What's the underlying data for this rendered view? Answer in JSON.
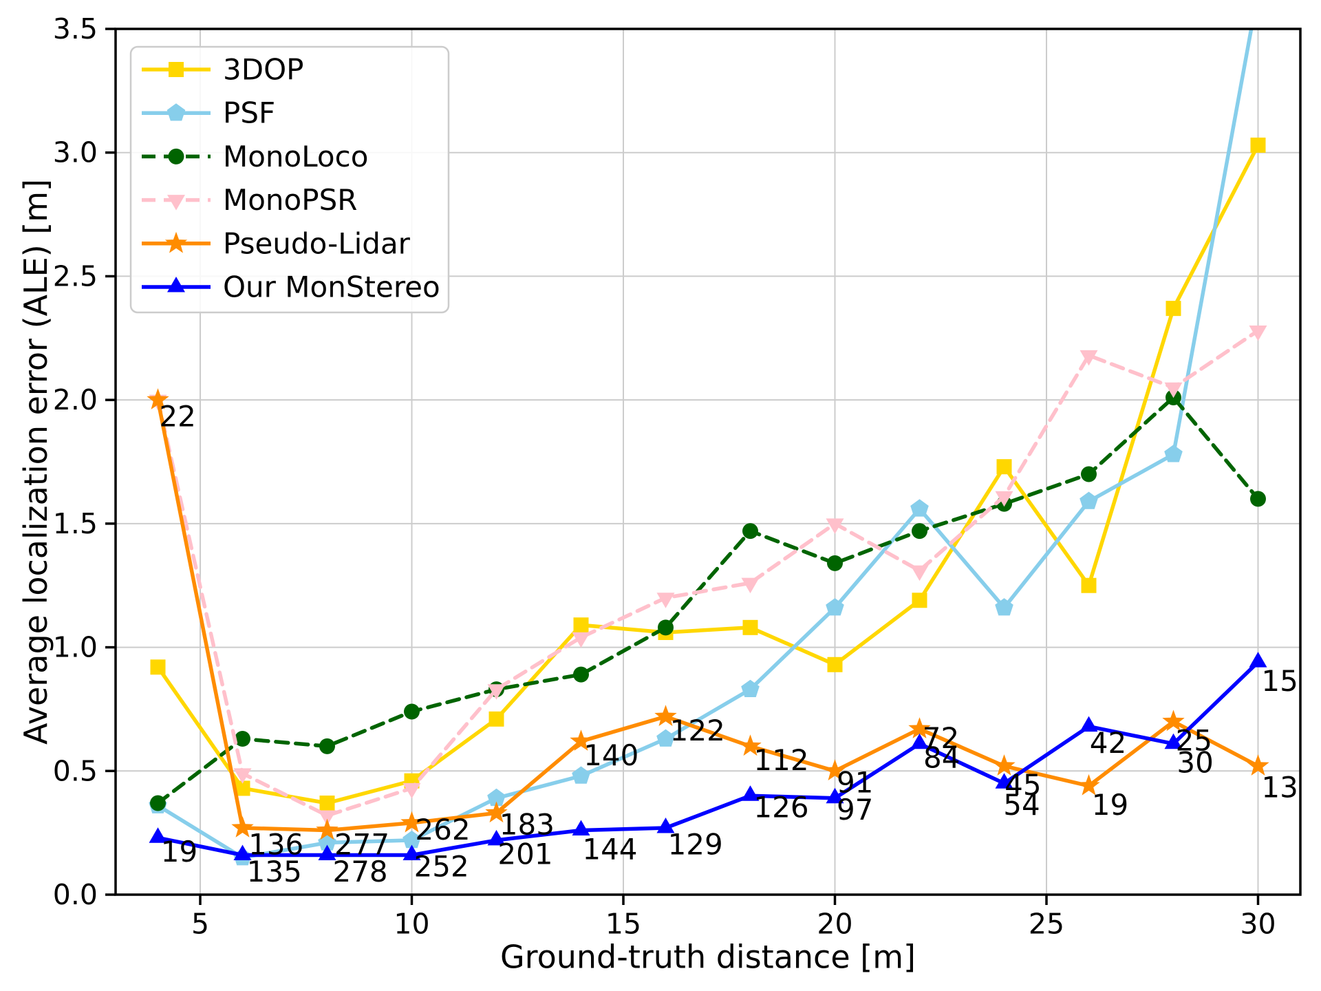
{
  "chart_data": {
    "type": "line",
    "title": "",
    "xlabel": "Ground-truth distance [m]",
    "ylabel": "Average localization error (ALE) [m]",
    "xlim": [
      3,
      31
    ],
    "ylim": [
      0,
      3.5
    ],
    "grid": true,
    "legend_position": "upper-left",
    "x_ticks": [
      "5",
      "10",
      "15",
      "20",
      "25",
      "30"
    ],
    "y_ticks": [
      "0.0",
      "0.5",
      "1.0",
      "1.5",
      "2.0",
      "2.5",
      "3.0",
      "3.5"
    ],
    "x": [
      4,
      6,
      8,
      10,
      12,
      14,
      16,
      18,
      20,
      22,
      24,
      26,
      28,
      30
    ],
    "series": [
      {
        "name": "3DOP",
        "color": "#FFD700",
        "marker": "square",
        "dash": "",
        "values": [
          0.92,
          0.43,
          0.37,
          0.46,
          0.71,
          1.09,
          1.06,
          1.08,
          0.93,
          1.19,
          1.73,
          1.25,
          2.37,
          3.03
        ]
      },
      {
        "name": "PSF",
        "color": "#87CEEB",
        "marker": "pentagon",
        "dash": "",
        "values": [
          0.36,
          0.15,
          0.21,
          0.22,
          0.39,
          0.48,
          0.63,
          0.83,
          1.16,
          1.56,
          1.16,
          1.59,
          1.78,
          3.65
        ]
      },
      {
        "name": "MonoLoco",
        "color": "#006400",
        "marker": "circle",
        "dash": "18 11",
        "values": [
          0.37,
          0.63,
          0.6,
          0.74,
          0.83,
          0.89,
          1.08,
          1.47,
          1.34,
          1.47,
          1.58,
          1.7,
          2.01,
          1.6
        ]
      },
      {
        "name": "MonoPSR",
        "color": "#FFC0CB",
        "marker": "triangle-down",
        "dash": "18 11",
        "values": [
          2.0,
          0.49,
          0.32,
          0.43,
          0.83,
          1.04,
          1.2,
          1.26,
          1.5,
          1.31,
          1.61,
          2.18,
          2.05,
          2.28
        ]
      },
      {
        "name": "Pseudo-Lidar",
        "color": "#FF8C00",
        "marker": "star",
        "dash": "",
        "values": [
          2.0,
          0.27,
          0.26,
          0.29,
          0.33,
          0.62,
          0.72,
          0.6,
          0.5,
          0.67,
          0.52,
          0.44,
          0.7,
          0.52
        ]
      },
      {
        "name": "Our MonStereo",
        "color": "#0000FF",
        "marker": "triangle-up",
        "dash": "",
        "values": [
          0.23,
          0.16,
          0.16,
          0.16,
          0.22,
          0.26,
          0.27,
          0.4,
          0.39,
          0.61,
          0.45,
          0.68,
          0.61,
          0.94
        ]
      }
    ],
    "annotations": [
      {
        "t": "22",
        "x": 4.03,
        "y": 1.98
      },
      {
        "t": "19",
        "x": 4.07,
        "y": 0.22
      },
      {
        "t": "136",
        "x": 6.14,
        "y": 0.25
      },
      {
        "t": "135",
        "x": 6.1,
        "y": 0.14
      },
      {
        "t": "277",
        "x": 8.17,
        "y": 0.25
      },
      {
        "t": "278",
        "x": 8.13,
        "y": 0.14
      },
      {
        "t": "262",
        "x": 10.08,
        "y": 0.31
      },
      {
        "t": "252",
        "x": 10.05,
        "y": 0.16
      },
      {
        "t": "183",
        "x": 12.07,
        "y": 0.33
      },
      {
        "t": "201",
        "x": 12.03,
        "y": 0.21
      },
      {
        "t": "140",
        "x": 14.06,
        "y": 0.61
      },
      {
        "t": "144",
        "x": 14.03,
        "y": 0.23
      },
      {
        "t": "122",
        "x": 16.1,
        "y": 0.71
      },
      {
        "t": "129",
        "x": 16.05,
        "y": 0.25
      },
      {
        "t": "112",
        "x": 18.08,
        "y": 0.59
      },
      {
        "t": "126",
        "x": 18.08,
        "y": 0.4
      },
      {
        "t": "91",
        "x": 20.04,
        "y": 0.5
      },
      {
        "t": "97",
        "x": 20.04,
        "y": 0.39
      },
      {
        "t": "72",
        "x": 22.07,
        "y": 0.68
      },
      {
        "t": "84",
        "x": 22.09,
        "y": 0.6
      },
      {
        "t": "45",
        "x": 24.01,
        "y": 0.49
      },
      {
        "t": "54",
        "x": 23.98,
        "y": 0.41
      },
      {
        "t": "42",
        "x": 26.02,
        "y": 0.66
      },
      {
        "t": "19",
        "x": 26.07,
        "y": 0.41
      },
      {
        "t": "25",
        "x": 28.05,
        "y": 0.67
      },
      {
        "t": "30",
        "x": 28.08,
        "y": 0.58
      },
      {
        "t": "15",
        "x": 30.08,
        "y": 0.91
      },
      {
        "t": "13",
        "x": 30.08,
        "y": 0.48
      }
    ],
    "style_colors": {
      "grid": "#CCCCCC",
      "spine": "#000000",
      "text": "#000000",
      "legend_border": "#CCCCCC",
      "legend_bg": "#FFFFFF"
    }
  }
}
